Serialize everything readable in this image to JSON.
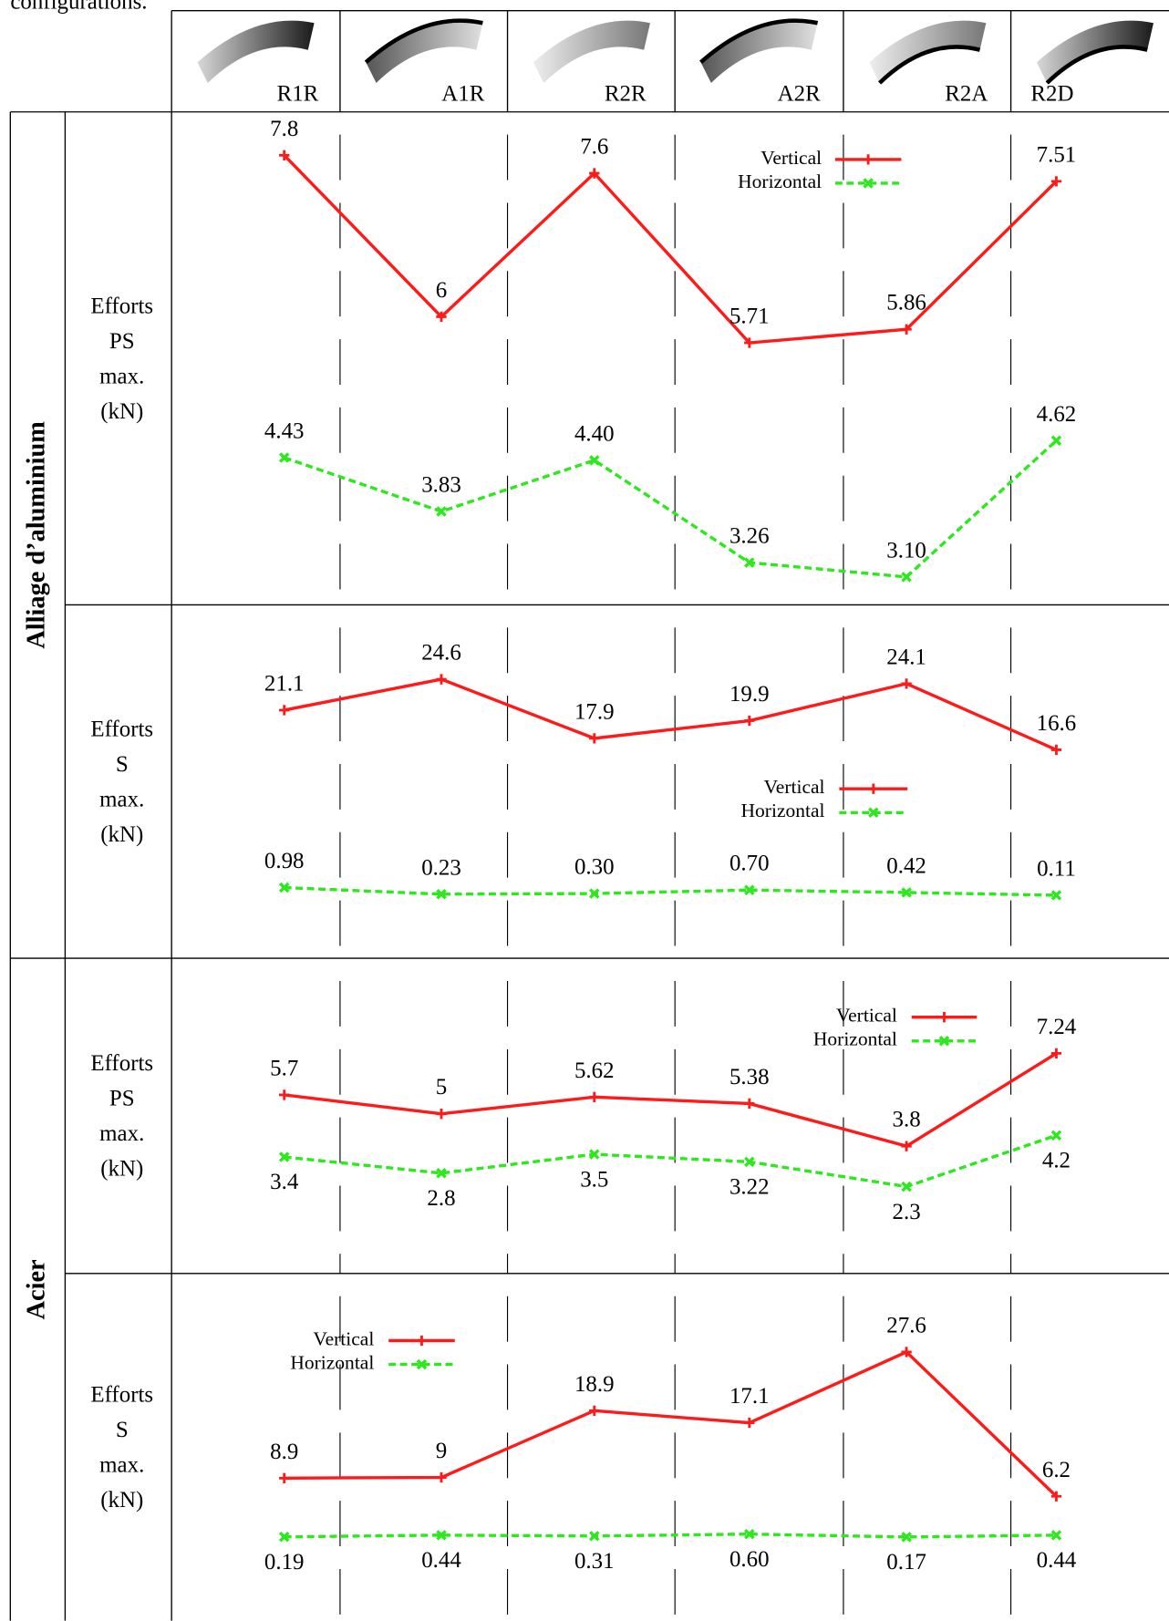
{
  "caption": "configurations.",
  "categories": [
    "R1R",
    "A1R",
    "R2R",
    "A2R",
    "R2A",
    "R2D"
  ],
  "chart_data": [
    {
      "type": "line",
      "group": "Alliage d’aluminium",
      "ylabel": [
        "Efforts",
        "PS",
        "max.",
        "(kN)"
      ],
      "series": [
        {
          "name": "Vertical",
          "color": "#ff1a1a",
          "marker": "+",
          "dashed": false,
          "values": [
            7.8,
            6,
            7.6,
            5.71,
            5.86,
            7.51
          ]
        },
        {
          "name": "Horizontal",
          "color": "#2ee81e",
          "marker": "x",
          "dashed": true,
          "values": [
            4.43,
            3.83,
            4.4,
            3.26,
            3.1,
            4.62
          ],
          "value_labels": [
            "4.43",
            "3.83",
            "4.40",
            "3.26",
            "3.10",
            "4.62"
          ]
        }
      ]
    },
    {
      "type": "line",
      "ylabel": [
        "Efforts",
        "S",
        "max.",
        "(kN)"
      ],
      "series": [
        {
          "name": "Vertical",
          "color": "#ff1a1a",
          "marker": "+",
          "dashed": false,
          "values": [
            21.1,
            24.6,
            17.9,
            19.9,
            24.1,
            16.6
          ]
        },
        {
          "name": "Horizontal",
          "color": "#2ee81e",
          "marker": "x",
          "dashed": true,
          "values": [
            0.98,
            0.23,
            0.3,
            0.7,
            0.42,
            0.11
          ],
          "value_labels": [
            "0.98",
            "0.23",
            "0.30",
            "0.70",
            "0.42",
            "0.11"
          ]
        }
      ]
    },
    {
      "type": "line",
      "group": "Acier",
      "ylabel": [
        "Efforts",
        "PS",
        "max.",
        "(kN)"
      ],
      "series": [
        {
          "name": "Vertical",
          "color": "#ff1a1a",
          "marker": "+",
          "dashed": false,
          "values": [
            5.7,
            5,
            5.62,
            5.38,
            3.8,
            7.24
          ]
        },
        {
          "name": "Horizontal",
          "color": "#2ee81e",
          "marker": "x",
          "dashed": true,
          "values": [
            3.4,
            2.8,
            3.5,
            3.22,
            2.3,
            4.2
          ]
        }
      ]
    },
    {
      "type": "line",
      "ylabel": [
        "Efforts",
        "S",
        "max.",
        "(kN)"
      ],
      "series": [
        {
          "name": "Vertical",
          "color": "#ff1a1a",
          "marker": "+",
          "dashed": false,
          "values": [
            8.9,
            9,
            18.9,
            17.1,
            27.6,
            6.2
          ]
        },
        {
          "name": "Horizontal",
          "color": "#2ee81e",
          "marker": "x",
          "dashed": true,
          "values": [
            0.19,
            0.44,
            0.31,
            0.6,
            0.17,
            0.44
          ],
          "value_labels": [
            "0.19",
            "0.44",
            "0.31",
            "0.60",
            "0.17",
            "0.44"
          ]
        }
      ]
    }
  ]
}
